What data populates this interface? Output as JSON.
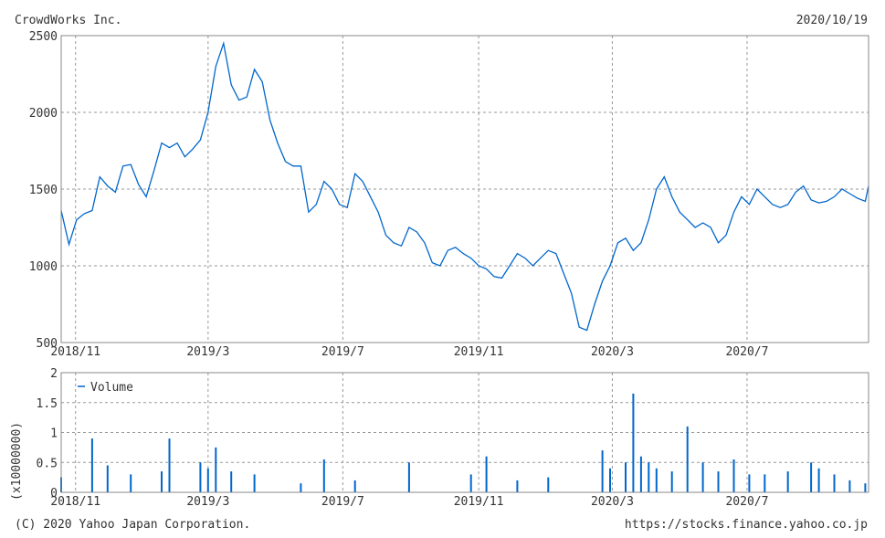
{
  "header": {
    "company": "CrowdWorks Inc.",
    "date": "2020/10/19"
  },
  "footer": {
    "copyright": "(C) 2020 Yahoo Japan Corporation.",
    "url": "https://stocks.finance.yahoo.co.jp"
  },
  "colors": {
    "line": "#0066cc",
    "grid": "#999999",
    "frame": "#888888",
    "text": "#333333"
  },
  "chart_data": [
    {
      "type": "line",
      "title": "",
      "x_tick_labels": [
        "2018/11",
        "2019/3",
        "2019/7",
        "2019/11",
        "2020/3",
        "2020/7"
      ],
      "y_tick_labels": [
        "500",
        "1000",
        "1500",
        "2000",
        "2500"
      ],
      "ylim": [
        500,
        2500
      ],
      "grid": true,
      "x_label": "",
      "y_label": "",
      "series": [
        {
          "name": "",
          "x": [
            "2018/10/19",
            "2018/10/26",
            "2018/11/02",
            "2018/11/09",
            "2018/11/16",
            "2018/11/23",
            "2018/11/30",
            "2018/12/07",
            "2018/12/14",
            "2018/12/21",
            "2018/12/28",
            "2019/01/04",
            "2019/01/11",
            "2019/01/18",
            "2019/01/25",
            "2019/02/01",
            "2019/02/08",
            "2019/02/15",
            "2019/02/22",
            "2019/03/01",
            "2019/03/08",
            "2019/03/15",
            "2019/03/22",
            "2019/03/29",
            "2019/04/05",
            "2019/04/12",
            "2019/04/19",
            "2019/04/26",
            "2019/05/03",
            "2019/05/10",
            "2019/05/17",
            "2019/05/24",
            "2019/05/31",
            "2019/06/07",
            "2019/06/14",
            "2019/06/21",
            "2019/06/28",
            "2019/07/05",
            "2019/07/12",
            "2019/07/19",
            "2019/07/26",
            "2019/08/02",
            "2019/08/09",
            "2019/08/16",
            "2019/08/23",
            "2019/08/30",
            "2019/09/06",
            "2019/09/13",
            "2019/09/20",
            "2019/09/27",
            "2019/10/04",
            "2019/10/11",
            "2019/10/18",
            "2019/10/25",
            "2019/11/01",
            "2019/11/08",
            "2019/11/15",
            "2019/11/22",
            "2019/11/29",
            "2019/12/06",
            "2019/12/13",
            "2019/12/20",
            "2019/12/27",
            "2020/01/03",
            "2020/01/10",
            "2020/01/17",
            "2020/01/24",
            "2020/01/31",
            "2020/02/07",
            "2020/02/14",
            "2020/02/21",
            "2020/02/28",
            "2020/03/06",
            "2020/03/13",
            "2020/03/20",
            "2020/03/27",
            "2020/04/03",
            "2020/04/10",
            "2020/04/17",
            "2020/04/24",
            "2020/05/01",
            "2020/05/08",
            "2020/05/15",
            "2020/05/22",
            "2020/05/29",
            "2020/06/05",
            "2020/06/12",
            "2020/06/19",
            "2020/06/26",
            "2020/07/03",
            "2020/07/10",
            "2020/07/17",
            "2020/07/24",
            "2020/07/31",
            "2020/08/07",
            "2020/08/14",
            "2020/08/21",
            "2020/08/28",
            "2020/09/04",
            "2020/09/11",
            "2020/09/18",
            "2020/09/25",
            "2020/10/02",
            "2020/10/09",
            "2020/10/16",
            "2020/10/19"
          ],
          "y": [
            1360,
            1140,
            1300,
            1340,
            1360,
            1580,
            1520,
            1480,
            1650,
            1660,
            1530,
            1450,
            1620,
            1800,
            1770,
            1800,
            1710,
            1760,
            1820,
            2000,
            2300,
            2450,
            2180,
            2080,
            2100,
            2280,
            2200,
            1950,
            1800,
            1680,
            1650,
            1650,
            1350,
            1400,
            1550,
            1500,
            1400,
            1380,
            1600,
            1550,
            1450,
            1350,
            1200,
            1150,
            1130,
            1250,
            1220,
            1150,
            1020,
            1000,
            1100,
            1120,
            1080,
            1050,
            1000,
            980,
            930,
            920,
            1000,
            1080,
            1050,
            1000,
            1050,
            1100,
            1080,
            950,
            820,
            600,
            580,
            750,
            900,
            1000,
            1150,
            1180,
            1100,
            1150,
            1300,
            1500,
            1580,
            1450,
            1350,
            1300,
            1250,
            1280,
            1250,
            1150,
            1200,
            1350,
            1450,
            1400,
            1500,
            1450,
            1400,
            1380,
            1400,
            1480,
            1520,
            1430,
            1410,
            1420,
            1450,
            1500,
            1470,
            1440,
            1420,
            1520
          ]
        }
      ]
    },
    {
      "type": "bar",
      "title": "",
      "legend": "Volume",
      "y_unit_label": "(x10000000)",
      "x_tick_labels": [
        "2018/11",
        "2019/3",
        "2019/7",
        "2019/11",
        "2020/3",
        "2020/7"
      ],
      "y_tick_labels": [
        "0",
        "0.5",
        "1",
        "1.5",
        "2"
      ],
      "ylim": [
        0,
        2
      ],
      "grid": true,
      "series": [
        {
          "name": "Volume",
          "x": [
            "2018/10/19",
            "2018/11/16",
            "2018/11/30",
            "2018/12/21",
            "2019/01/18",
            "2019/01/25",
            "2019/02/22",
            "2019/03/01",
            "2019/03/08",
            "2019/03/22",
            "2019/04/12",
            "2019/05/24",
            "2019/06/14",
            "2019/07/12",
            "2019/08/30",
            "2019/10/25",
            "2019/11/08",
            "2019/12/06",
            "2020/01/03",
            "2020/02/21",
            "2020/02/28",
            "2020/03/13",
            "2020/03/20",
            "2020/03/27",
            "2020/04/03",
            "2020/04/10",
            "2020/04/24",
            "2020/05/08",
            "2020/05/22",
            "2020/06/05",
            "2020/06/19",
            "2020/07/03",
            "2020/07/17",
            "2020/08/07",
            "2020/08/28",
            "2020/09/04",
            "2020/09/18",
            "2020/10/02",
            "2020/10/16"
          ],
          "y": [
            0.25,
            0.9,
            0.45,
            0.3,
            0.35,
            0.9,
            0.5,
            0.4,
            0.75,
            0.35,
            0.3,
            0.15,
            0.55,
            0.2,
            0.5,
            0.3,
            0.6,
            0.2,
            0.25,
            0.7,
            0.4,
            0.5,
            1.65,
            0.6,
            0.5,
            0.4,
            0.35,
            1.1,
            0.5,
            0.35,
            0.55,
            0.3,
            0.3,
            0.35,
            0.5,
            0.4,
            0.3,
            0.2,
            0.15
          ]
        }
      ]
    }
  ]
}
